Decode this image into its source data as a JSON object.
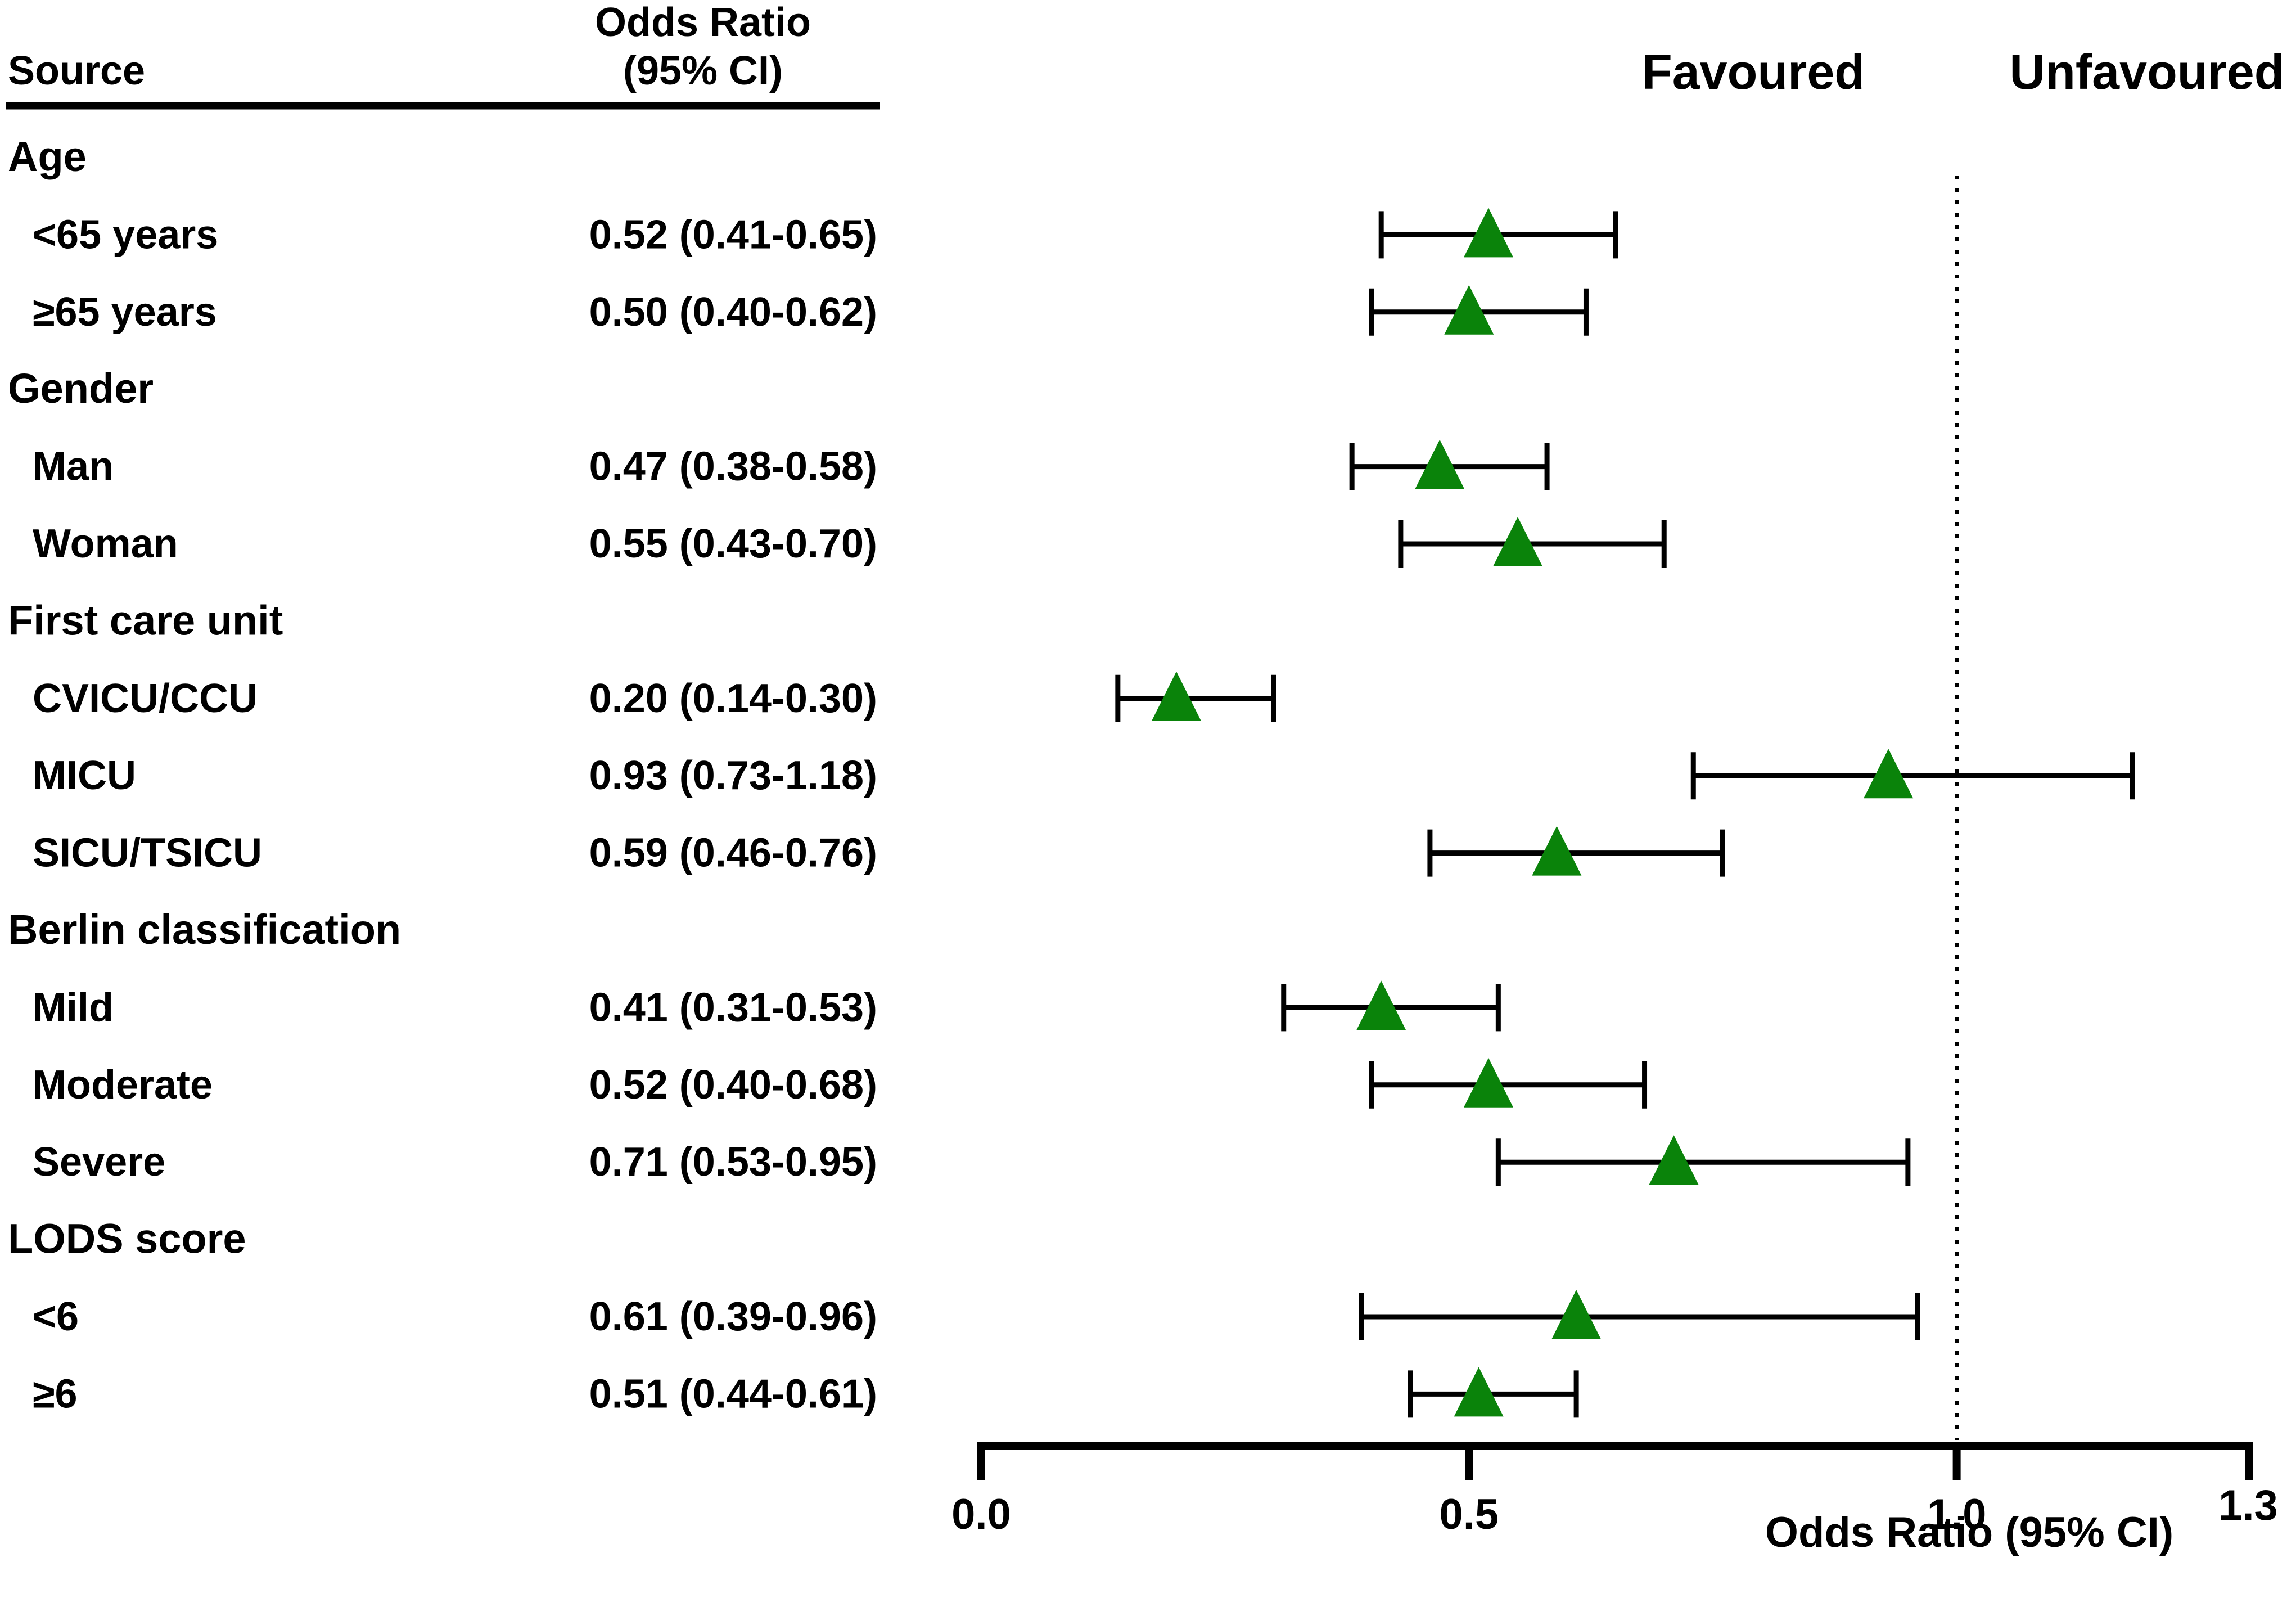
{
  "chart_data": {
    "type": "forest",
    "header": {
      "source_label": "Source",
      "or_label_line1": "Odds Ratio",
      "or_label_line2": "(95% CI)"
    },
    "favoured_label": "Favoured",
    "unfavoured_label": "Unfavoured",
    "xlabel": "Odds Ratio (95% CI)",
    "xlim": [
      0.0,
      1.3
    ],
    "xticks": [
      0.0,
      0.5,
      1.0,
      1.3
    ],
    "xtick_labels": [
      "0.0",
      "0.5",
      "1.0",
      "1.3"
    ],
    "reference_line": 1.0,
    "marker": "triangle",
    "marker_color": "#0a830a",
    "groups": [
      {
        "label": "Age",
        "rows": [
          {
            "label": "<65 years",
            "text": "0.52 (0.41-0.65)",
            "or": 0.52,
            "lo": 0.41,
            "hi": 0.65
          },
          {
            "label": "≥65 years",
            "text": "0.50 (0.40-0.62)",
            "or": 0.5,
            "lo": 0.4,
            "hi": 0.62
          }
        ]
      },
      {
        "label": "Gender",
        "rows": [
          {
            "label": "Man",
            "text": "0.47 (0.38-0.58)",
            "or": 0.47,
            "lo": 0.38,
            "hi": 0.58
          },
          {
            "label": "Woman",
            "text": "0.55 (0.43-0.70)",
            "or": 0.55,
            "lo": 0.43,
            "hi": 0.7
          }
        ]
      },
      {
        "label": "First care unit",
        "rows": [
          {
            "label": "CVICU/CCU",
            "text": "0.20 (0.14-0.30)",
            "or": 0.2,
            "lo": 0.14,
            "hi": 0.3
          },
          {
            "label": "MICU",
            "text": "0.93 (0.73-1.18)",
            "or": 0.93,
            "lo": 0.73,
            "hi": 1.18
          },
          {
            "label": "SICU/TSICU",
            "text": "0.59 (0.46-0.76)",
            "or": 0.59,
            "lo": 0.46,
            "hi": 0.76
          }
        ]
      },
      {
        "label": "Berlin classification",
        "rows": [
          {
            "label": "Mild",
            "text": "0.41 (0.31-0.53)",
            "or": 0.41,
            "lo": 0.31,
            "hi": 0.53
          },
          {
            "label": "Moderate",
            "text": "0.52 (0.40-0.68)",
            "or": 0.52,
            "lo": 0.4,
            "hi": 0.68
          },
          {
            "label": "Severe",
            "text": "0.71 (0.53-0.95)",
            "or": 0.71,
            "lo": 0.53,
            "hi": 0.95
          }
        ]
      },
      {
        "label": "LODS score",
        "rows": [
          {
            "label": "<6",
            "text": "0.61 (0.39-0.96)",
            "or": 0.61,
            "lo": 0.39,
            "hi": 0.96
          },
          {
            "label": "≥6",
            "text": "0.51 (0.44-0.61)",
            "or": 0.51,
            "lo": 0.44,
            "hi": 0.61
          }
        ]
      }
    ]
  }
}
